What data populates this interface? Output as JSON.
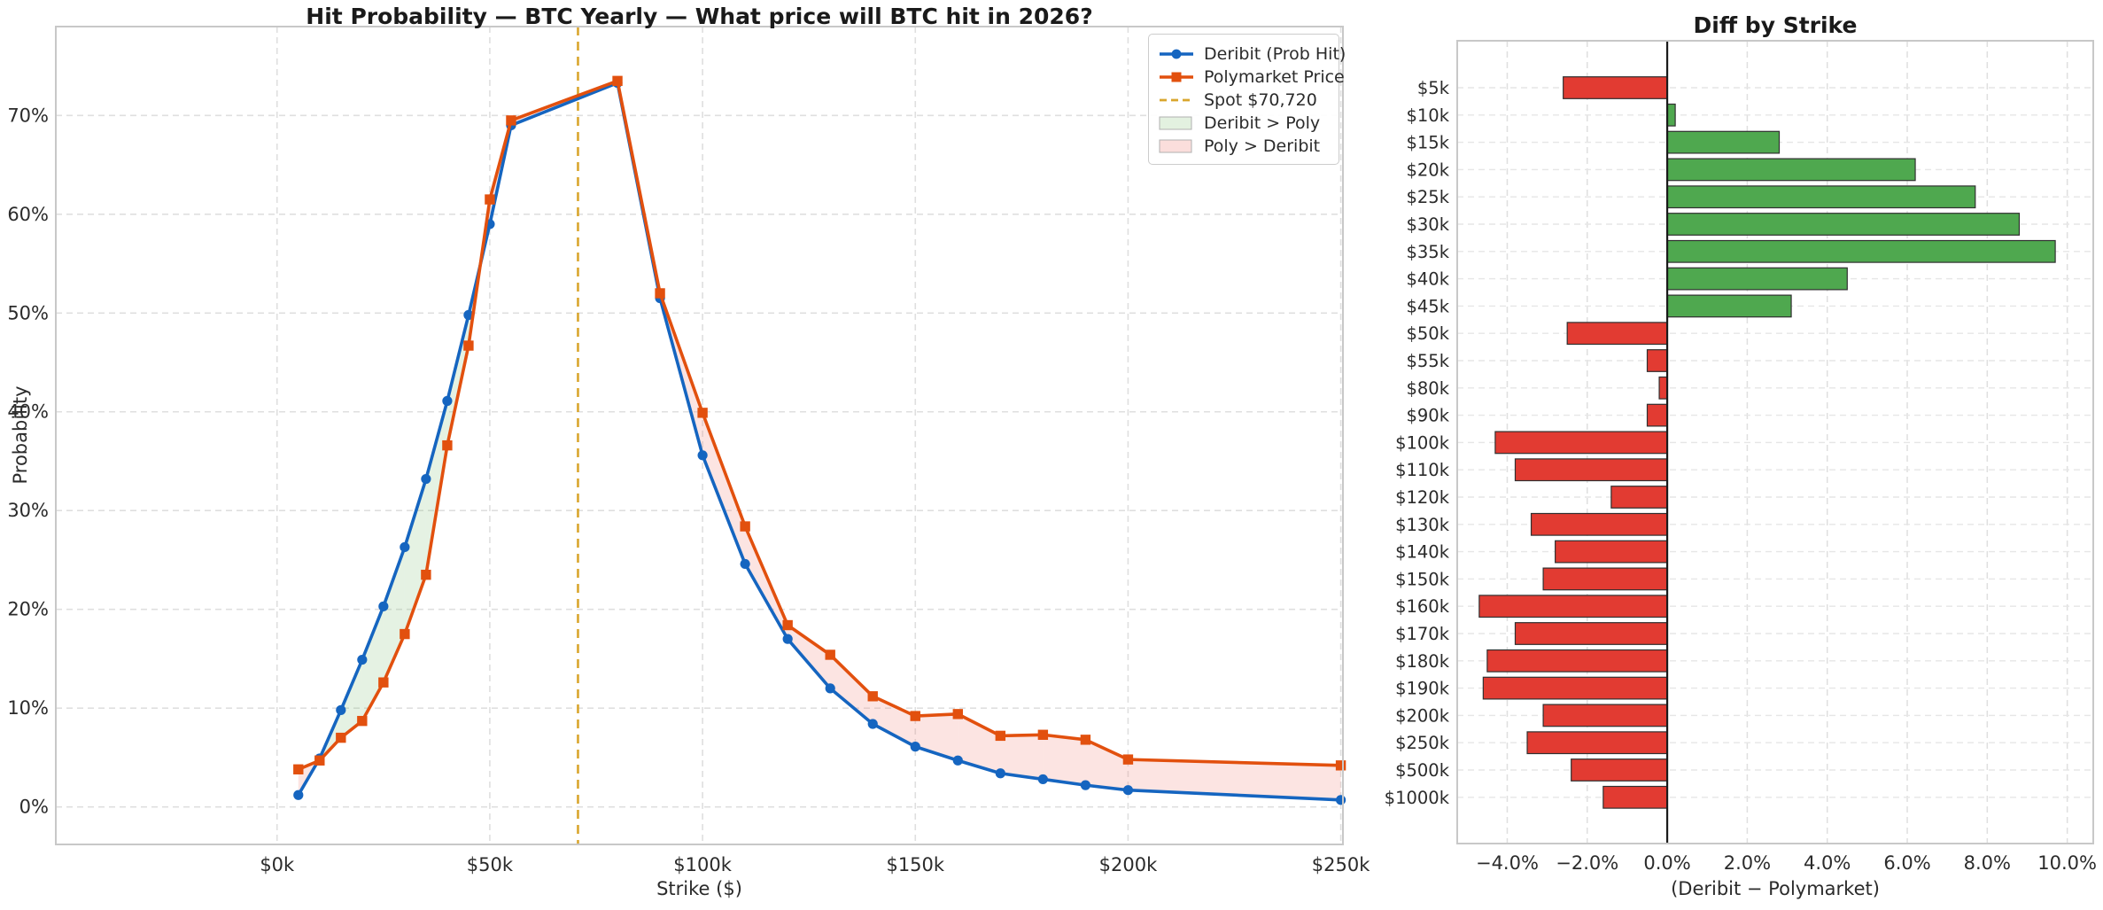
{
  "colors": {
    "deribit_blue": "#1565c0",
    "polymarket_orange": "#e2500e",
    "spot_gold": "#d9a62e",
    "fill_deribit_gt_poly": "#7fbf72",
    "fill_poly_gt_deribit": "#f2928a",
    "bar_positive_green": "#4fa84f",
    "bar_negative_red": "#e23b32",
    "grid": "#dfdfdf",
    "plot_border": "#c8c8c8",
    "zero_line": "#1a1a1a"
  },
  "chart_data": [
    {
      "type": "line",
      "title": "Hit Probability — BTC Yearly — What price will BTC hit in 2026?",
      "xlabel": "Strike ($)",
      "ylabel": "Probability",
      "grid": true,
      "legend_position": "upper right",
      "xlim": [
        -52,
        250.5
      ],
      "ylim": [
        -3.8,
        79
      ],
      "x_ticks": [
        "$0k",
        "$50k",
        "$100k",
        "$150k",
        "$200k",
        "$250k"
      ],
      "x_tick_values": [
        0,
        50,
        100,
        150,
        200,
        250
      ],
      "y_ticks": [
        "0%",
        "10%",
        "20%",
        "30%",
        "40%",
        "50%",
        "60%",
        "70%"
      ],
      "y_tick_values": [
        0,
        10,
        20,
        30,
        40,
        50,
        60,
        70
      ],
      "spot_label": "Spot $70,720",
      "spot_value": 70.72,
      "x": [
        5,
        10,
        15,
        20,
        25,
        30,
        35,
        40,
        45,
        50,
        55,
        80,
        90,
        100,
        110,
        120,
        130,
        140,
        150,
        160,
        170,
        180,
        190,
        200,
        250
      ],
      "series": [
        {
          "name": "Deribit (Prob Hit)",
          "marker": "circle",
          "values": [
            1.2,
            4.9,
            9.8,
            14.9,
            20.3,
            26.3,
            33.2,
            41.1,
            49.8,
            59.0,
            69.0,
            73.3,
            51.5,
            35.6,
            24.6,
            17.0,
            12.0,
            8.4,
            6.1,
            4.7,
            3.4,
            2.8,
            2.2,
            1.7,
            0.7
          ]
        },
        {
          "name": "Polymarket Price",
          "marker": "square",
          "values": [
            3.8,
            4.7,
            7.0,
            8.7,
            12.6,
            17.5,
            23.5,
            36.6,
            46.7,
            61.5,
            69.5,
            73.5,
            52.0,
            39.9,
            28.4,
            18.4,
            15.4,
            11.2,
            9.2,
            9.4,
            7.2,
            7.3,
            6.8,
            4.8,
            4.2
          ]
        }
      ],
      "legend": [
        {
          "label": "Deribit (Prob Hit)",
          "swatch": "line-circle"
        },
        {
          "label": "Polymarket Price",
          "swatch": "line-square"
        },
        {
          "label": "Spot $70,720",
          "swatch": "dash"
        },
        {
          "label": "Deribit > Poly",
          "swatch": "patch-green"
        },
        {
          "label": "Poly > Deribit",
          "swatch": "patch-red"
        }
      ]
    },
    {
      "type": "bar",
      "orientation": "horizontal",
      "title": "Diff by Strike",
      "xlabel": "(Deribit − Polymarket)",
      "grid": true,
      "xlim": [
        -5.25,
        10.65
      ],
      "x_ticks": [
        "−4.0%",
        "−2.0%",
        "0.0%",
        "2.0%",
        "4.0%",
        "6.0%",
        "8.0%",
        "10.0%"
      ],
      "x_tick_values": [
        -4,
        -2,
        0,
        2,
        4,
        6,
        8,
        10
      ],
      "categories": [
        "$5k",
        "$10k",
        "$15k",
        "$20k",
        "$25k",
        "$30k",
        "$35k",
        "$40k",
        "$45k",
        "$50k",
        "$55k",
        "$80k",
        "$90k",
        "$100k",
        "$110k",
        "$120k",
        "$130k",
        "$140k",
        "$150k",
        "$160k",
        "$170k",
        "$180k",
        "$190k",
        "$200k",
        "$250k",
        "$500k",
        "$1000k"
      ],
      "values": [
        -2.6,
        0.2,
        2.8,
        6.2,
        7.7,
        8.8,
        9.7,
        4.5,
        3.1,
        -2.5,
        -0.5,
        -0.2,
        -0.5,
        -4.3,
        -3.8,
        -1.4,
        -3.4,
        -2.8,
        -3.1,
        -4.7,
        -3.8,
        -4.5,
        -4.6,
        -3.1,
        -3.5,
        -2.4,
        -1.6
      ]
    }
  ]
}
